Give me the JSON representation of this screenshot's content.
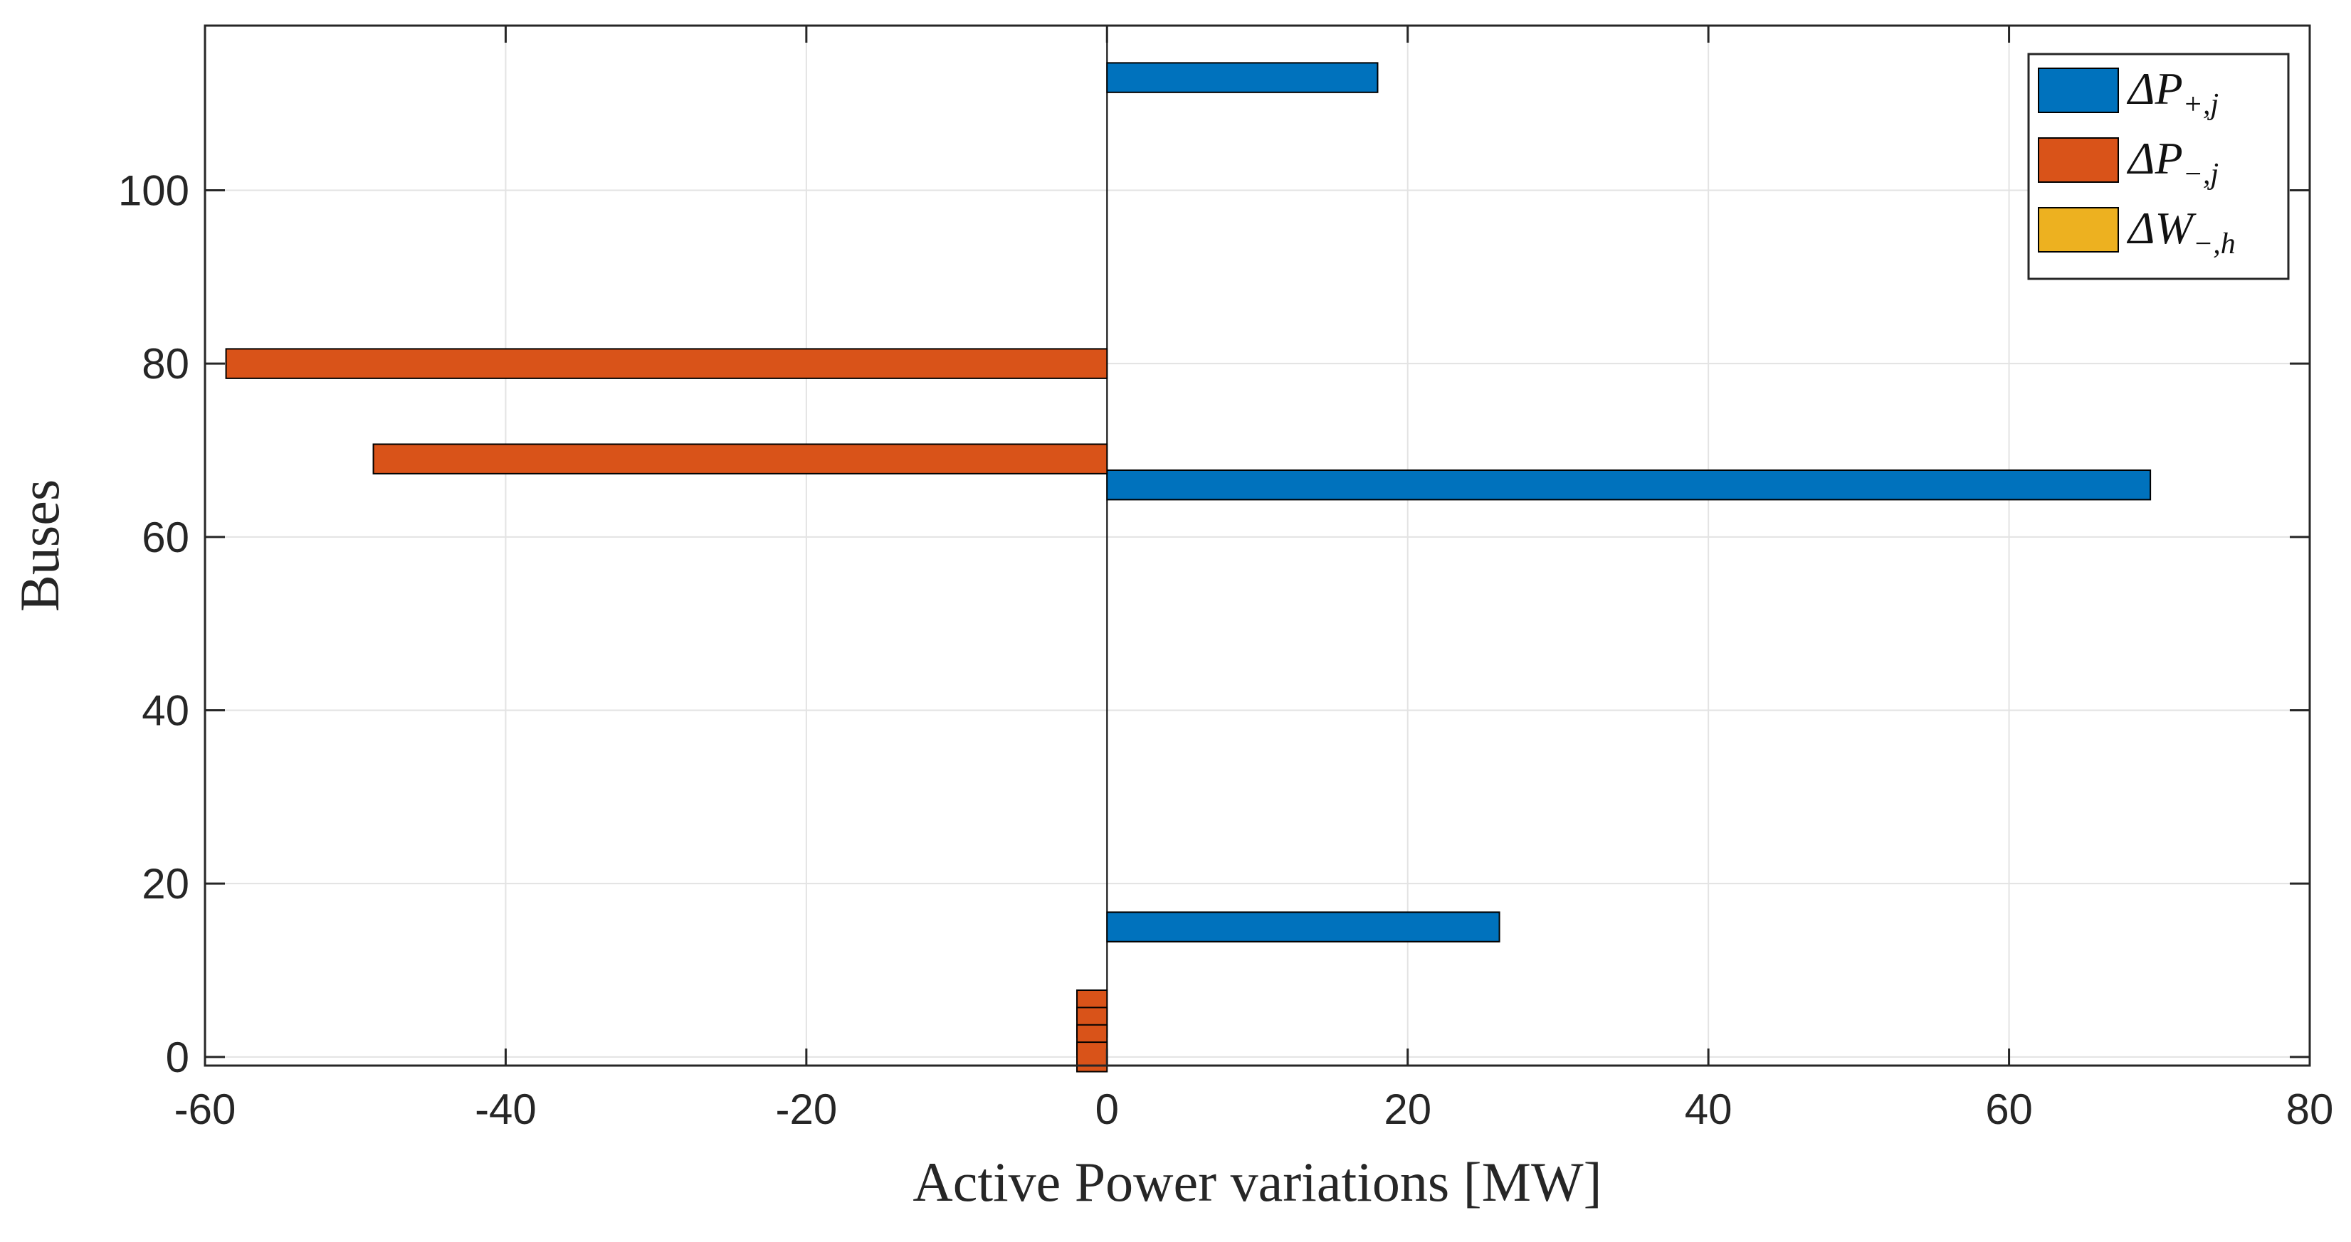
{
  "chart_data": {
    "type": "bar",
    "orientation": "horizontal",
    "title": "",
    "xlabel": "Active Power variations [MW]",
    "ylabel": "Buses",
    "xlim": [
      -60,
      80
    ],
    "ylim": [
      -1,
      119
    ],
    "xticks": [
      -60,
      -40,
      -20,
      0,
      20,
      40,
      60,
      80
    ],
    "yticks": [
      0,
      20,
      40,
      60,
      80,
      100
    ],
    "xtick_labels": [
      "-60",
      "-40",
      "-20",
      "0",
      "20",
      "40",
      "60",
      "80"
    ],
    "ytick_labels": [
      "0",
      "20",
      "40",
      "60",
      "80",
      "100"
    ],
    "grid": true,
    "legend_position": "top-right",
    "series": [
      {
        "name": "ΔP+,j",
        "legend_main": "ΔP",
        "legend_sub": "+,j",
        "color": "#0072BD",
        "points": [
          {
            "bus": 113,
            "value": 18.0
          },
          {
            "bus": 66,
            "value": 69.4
          },
          {
            "bus": 15,
            "value": 26.1
          }
        ]
      },
      {
        "name": "ΔP−,j",
        "legend_main": "ΔP",
        "legend_sub": "−,j",
        "color": "#D95319",
        "points": [
          {
            "bus": 80,
            "value": -58.6
          },
          {
            "bus": 69,
            "value": -48.8
          },
          {
            "bus": 6,
            "value": -2.0
          },
          {
            "bus": 4,
            "value": -2.0
          },
          {
            "bus": 2,
            "value": -2.0
          },
          {
            "bus": 0,
            "value": -2.0
          }
        ]
      },
      {
        "name": "ΔW−,h",
        "legend_main": "ΔW",
        "legend_sub": "−,h",
        "color": "#EDB120",
        "points": []
      }
    ]
  }
}
